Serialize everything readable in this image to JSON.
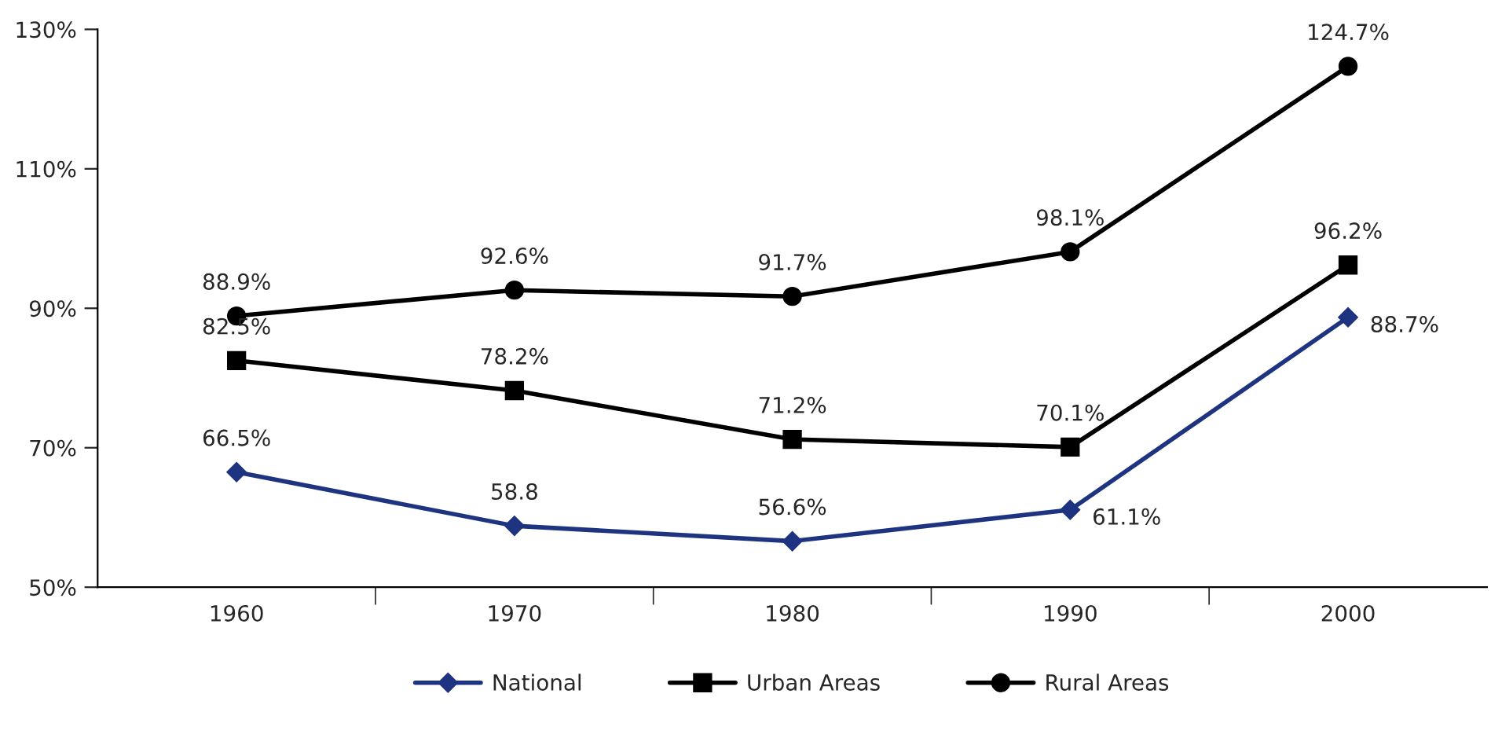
{
  "chart_data": {
    "type": "line",
    "categories": [
      "1960",
      "1970",
      "1980",
      "1990",
      "2000"
    ],
    "series": [
      {
        "name": "National",
        "color": "#1f3480",
        "marker": "diamond",
        "values": [
          66.5,
          58.8,
          56.6,
          61.1,
          88.7
        ],
        "value_labels": [
          "66.5%",
          "58.8",
          "56.6%",
          "61.1%",
          "88.7%"
        ]
      },
      {
        "name": "Urban Areas",
        "color": "#000000",
        "marker": "square",
        "values": [
          82.5,
          78.2,
          71.2,
          70.1,
          96.2
        ],
        "value_labels": [
          "82.5%",
          "78.2%",
          "71.2%",
          "70.1%",
          "96.2%"
        ]
      },
      {
        "name": "Rural Areas",
        "color": "#000000",
        "marker": "circle",
        "values": [
          88.9,
          92.6,
          91.7,
          98.1,
          124.7
        ],
        "value_labels": [
          "88.9%",
          "92.6%",
          "91.7%",
          "98.1%",
          "124.7%"
        ]
      }
    ],
    "ylim": [
      50,
      130
    ],
    "yticks": [
      {
        "value": 50,
        "label": "50%"
      },
      {
        "value": 70,
        "label": "70%"
      },
      {
        "value": 90,
        "label": "90%"
      },
      {
        "value": 110,
        "label": "110%"
      },
      {
        "value": 130,
        "label": "130%"
      }
    ],
    "grid": false,
    "legend": "bottom",
    "line_style": "solid"
  }
}
